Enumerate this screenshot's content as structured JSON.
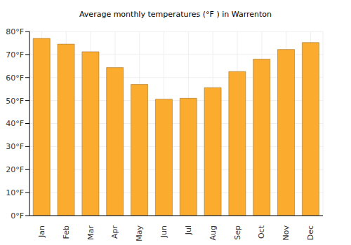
{
  "chart_data": {
    "type": "bar",
    "title": "Average monthly temperatures (°F ) in Warrenton",
    "categories": [
      "Jan",
      "Feb",
      "Mar",
      "Apr",
      "May",
      "Jun",
      "Jul",
      "Aug",
      "Sep",
      "Oct",
      "Nov",
      "Dec"
    ],
    "values": [
      77,
      74.5,
      71.2,
      64.3,
      57,
      50.6,
      51,
      55.6,
      62.6,
      68,
      72.2,
      75.2
    ],
    "color": "#fbac2e",
    "ylim": [
      0,
      80
    ],
    "yticks": [
      {
        "value": 0,
        "label": "0°F"
      },
      {
        "value": 10,
        "label": "10°F"
      },
      {
        "value": 20,
        "label": "20°F"
      },
      {
        "value": 30,
        "label": "30°F"
      },
      {
        "value": 40,
        "label": "40°F"
      },
      {
        "value": 50,
        "label": "50°F"
      },
      {
        "value": 60,
        "label": "60°F"
      },
      {
        "value": 70,
        "label": "70°F"
      },
      {
        "value": 80,
        "label": "80°F"
      }
    ],
    "grid": true
  }
}
